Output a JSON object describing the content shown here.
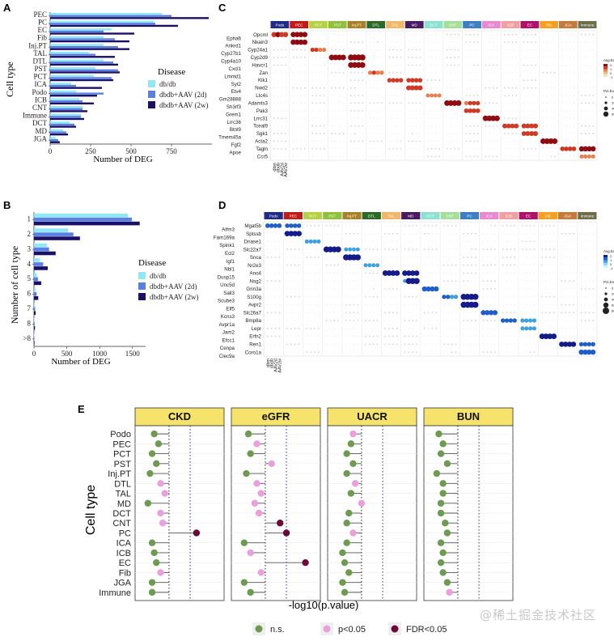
{
  "panels": {
    "A": "A",
    "B": "B",
    "C": "C",
    "D": "D",
    "E": "E"
  },
  "watermark": "@稀土掘金技术社区",
  "legend_title": "Disease",
  "chart_data": [
    {
      "id": "A",
      "type": "bar",
      "orientation": "horizontal",
      "xlabel": "Number of DEG",
      "ylabel": "Cell type",
      "xlim": [
        0,
        1000
      ],
      "xticks": [
        "0",
        "250",
        "500",
        "750"
      ],
      "categories": [
        "PEC",
        "PC",
        "EC",
        "Fib",
        "Inj.PT",
        "TAL",
        "DTL",
        "PST",
        "PCT",
        "ICA",
        "Podo",
        "ICB",
        "CNT",
        "Immune",
        "DCT",
        "MD",
        "JGA"
      ],
      "series": [
        {
          "name": "db/db",
          "color": "#8ee8f5",
          "values": [
            690,
            640,
            380,
            330,
            330,
            240,
            330,
            280,
            270,
            130,
            160,
            180,
            200,
            190,
            120,
            80,
            35
          ]
        },
        {
          "name": "dbdb+AAV (2d)",
          "color": "#5a7fe3",
          "values": [
            750,
            650,
            330,
            400,
            420,
            280,
            390,
            420,
            380,
            160,
            330,
            200,
            200,
            190,
            150,
            100,
            50
          ]
        },
        {
          "name": "dbdb+AAV (2w)",
          "color": "#1a1066",
          "values": [
            980,
            790,
            520,
            490,
            490,
            400,
            420,
            430,
            390,
            320,
            290,
            270,
            230,
            210,
            160,
            110,
            60
          ]
        }
      ]
    },
    {
      "id": "B",
      "type": "bar",
      "orientation": "horizontal",
      "xlabel": "Number of DEG",
      "ylabel": "Number of cell type",
      "xlim": [
        0,
        1700
      ],
      "xticks": [
        "0",
        "500",
        "1000",
        "1500"
      ],
      "categories": [
        "1",
        "2",
        "3",
        "4",
        "5",
        "6",
        "7",
        "8",
        ">8"
      ],
      "series": [
        {
          "name": "db/db",
          "color": "#8ee8f5",
          "values": [
            1430,
            520,
            200,
            90,
            45,
            25,
            10,
            6,
            4
          ]
        },
        {
          "name": "dbdb+AAV (2d)",
          "color": "#5a7fe3",
          "values": [
            1490,
            600,
            230,
            140,
            60,
            40,
            18,
            10,
            6
          ]
        },
        {
          "name": "dbdb+AAV (2w)",
          "color": "#1a1066",
          "values": [
            1610,
            700,
            330,
            210,
            110,
            65,
            25,
            15,
            8
          ]
        }
      ]
    },
    {
      "id": "C",
      "type": "dotplot",
      "clusters": [
        {
          "name": "Podo",
          "color": "#1f2d87"
        },
        {
          "name": "PEC",
          "color": "#c21a1a"
        },
        {
          "name": "PCT",
          "color": "#b4d244"
        },
        {
          "name": "PST",
          "color": "#8fc13b"
        },
        {
          "name": "Inj.PT",
          "color": "#a8822a"
        },
        {
          "name": "DTL",
          "color": "#2d6a2a"
        },
        {
          "name": "TAL",
          "color": "#f0b86a"
        },
        {
          "name": "MD",
          "color": "#4a1a63"
        },
        {
          "name": "DCT",
          "color": "#8ee0d0"
        },
        {
          "name": "CNT",
          "color": "#a6df9a"
        },
        {
          "name": "PC",
          "color": "#3c7fc2"
        },
        {
          "name": "ICA",
          "color": "#e98ad0"
        },
        {
          "name": "ICB",
          "color": "#f0a0a0"
        },
        {
          "name": "EC",
          "color": "#b0126a"
        },
        {
          "name": "Fib",
          "color": "#f5a020"
        },
        {
          "name": "JGA",
          "color": "#c47a3a"
        },
        {
          "name": "Immune",
          "color": "#6e6e4a"
        }
      ],
      "genes_left": [
        "Epha6",
        "Ankrd1",
        "Cyp27b1",
        "Cyp4a10",
        "Cxcl1",
        "Lmntd1",
        "Syt2",
        "Etv4",
        "Gm28888",
        "Sh3rf3",
        "Grem1",
        "Lrrc36",
        "Btnl9",
        "Tmem45a",
        "Fgf2",
        "Apoe"
      ],
      "genes_right": [
        "Opcml",
        "Nkain3",
        "Cyp24a1",
        "Cyp2d9",
        "Havcr1",
        "Zan",
        "Klk1",
        "Nwd2",
        "Ltc4s",
        "Adamts3",
        "Pak3",
        "Lrrc31",
        "Tceal9",
        "Sgk1",
        "Acta2",
        "Tagln",
        "Ccr5"
      ],
      "conditions": [
        "dbm",
        "dbdb",
        "AAV2d",
        "AAV2w"
      ],
      "legend": {
        "scale_title": "Avg.Exp",
        "size_title": "Pct.Exp",
        "scale_values": [
          "2",
          "1",
          "0",
          "-1"
        ],
        "size_values": [
          "0",
          "20",
          "40",
          "60"
        ]
      }
    },
    {
      "id": "D",
      "type": "dotplot",
      "clusters": [
        {
          "name": "Podo",
          "color": "#1f2d87"
        },
        {
          "name": "PEC",
          "color": "#c21a1a"
        },
        {
          "name": "PCT",
          "color": "#b4d244"
        },
        {
          "name": "PST",
          "color": "#8fc13b"
        },
        {
          "name": "Inj.PT",
          "color": "#a8822a"
        },
        {
          "name": "DTL",
          "color": "#2d6a2a"
        },
        {
          "name": "TAL",
          "color": "#f0b86a"
        },
        {
          "name": "MD",
          "color": "#4a1a63"
        },
        {
          "name": "DCT",
          "color": "#8ee0d0"
        },
        {
          "name": "CNT",
          "color": "#a6df9a"
        },
        {
          "name": "PC",
          "color": "#3c7fc2"
        },
        {
          "name": "ICA",
          "color": "#e98ad0"
        },
        {
          "name": "ICB",
          "color": "#f0a0a0"
        },
        {
          "name": "EC",
          "color": "#b0126a"
        },
        {
          "name": "Fib",
          "color": "#f5a020"
        },
        {
          "name": "JGA",
          "color": "#c47a3a"
        },
        {
          "name": "Immune",
          "color": "#6e6e4a"
        }
      ],
      "genes_left": [
        "Aifm3",
        "Fam169a",
        "Spink1",
        "Ecl2",
        "Igf1",
        "Nbl1",
        "Dusp15",
        "Unc5d",
        "Sall3",
        "Scube3",
        "Elf5",
        "Kcns3",
        "Avpr1a",
        "Jam2",
        "Efcc1",
        "Cenpa",
        "Clec9a"
      ],
      "genes_right": [
        "Mgat5b",
        "Sptssb",
        "Dnase1",
        "Slc22a7",
        "Snca",
        "Nr2e3",
        "Ano4",
        "Nsg2",
        "Grin3a",
        "S100g",
        "Avpr2",
        "Slc26a7",
        "Bmp8a",
        "Lepr",
        "Erfn2",
        "Ren1",
        "Coro1a"
      ],
      "conditions": [
        "dbm",
        "dbdb",
        "AAV2d",
        "AAV2w"
      ],
      "legend": {
        "scale_title": "Avg.Exp",
        "size_title": "Pct.Exp",
        "scale_values": [
          "2",
          "1",
          "0",
          "-1"
        ],
        "size_values": [
          "0",
          "20",
          "40",
          "60",
          "80"
        ]
      }
    },
    {
      "id": "E",
      "type": "lollipop",
      "xlabel": "-log10(p.value)",
      "ylabel": "Cell type",
      "categories": [
        "Podo",
        "PEC",
        "PCT",
        "PST",
        "Inj.PT",
        "DTL",
        "TAL",
        "MD",
        "DCT",
        "CNT",
        "PC",
        "ICA",
        "ICB",
        "EC",
        "Fib",
        "JGA",
        "Immune"
      ],
      "status_colors": {
        "ns": "#6e9a52",
        "p": "#e9a0dc",
        "fdr": "#6b0a3a"
      },
      "legend": [
        {
          "key": "ns",
          "label": "n.s."
        },
        {
          "key": "p",
          "label": "p<0.05"
        },
        {
          "key": "fdr",
          "label": "FDR<0.05"
        }
      ],
      "facets": [
        {
          "name": "CKD",
          "values": [
            0.6,
            0.8,
            0.5,
            0.7,
            0.4,
            0.9,
            1.1,
            0.3,
            0.9,
            1.0,
            2.6,
            0.5,
            0.6,
            0.7,
            0.9,
            0.5,
            0.5
          ],
          "status": [
            "ns",
            "ns",
            "ns",
            "ns",
            "ns",
            "p",
            "p",
            "ns",
            "p",
            "p",
            "fdr",
            "ns",
            "ns",
            "ns",
            "p",
            "ns",
            "ns"
          ]
        },
        {
          "name": "eGFR",
          "values": [
            0.5,
            0.9,
            0.6,
            1.6,
            0.4,
            0.9,
            1.1,
            0.8,
            1.0,
            2.0,
            2.3,
            0.3,
            0.6,
            3.2,
            1.1,
            0.3,
            0.6
          ],
          "status": [
            "ns",
            "p",
            "ns",
            "p",
            "ns",
            "p",
            "p",
            "p",
            "p",
            "fdr",
            "fdr",
            "ns",
            "p",
            "fdr",
            "p",
            "ns",
            "ns"
          ]
        },
        {
          "name": "UACR",
          "values": [
            0.9,
            0.8,
            0.6,
            0.9,
            0.6,
            1.0,
            0.8,
            1.3,
            0.7,
            0.6,
            0.9,
            0.6,
            0.4,
            0.5,
            0.7,
            0.4,
            0.5
          ],
          "status": [
            "p",
            "ns",
            "ns",
            "ns",
            "ns",
            "p",
            "ns",
            "p",
            "ns",
            "ns",
            "p",
            "ns",
            "ns",
            "ns",
            "ns",
            "ns",
            "ns"
          ]
        },
        {
          "name": "BUN",
          "values": [
            0.4,
            0.6,
            0.5,
            0.8,
            0.3,
            0.6,
            0.6,
            0.5,
            0.5,
            0.7,
            0.8,
            0.5,
            0.6,
            0.5,
            0.6,
            0.8,
            0.9
          ],
          "status": [
            "ns",
            "ns",
            "ns",
            "ns",
            "ns",
            "ns",
            "ns",
            "ns",
            "ns",
            "ns",
            "ns",
            "ns",
            "ns",
            "ns",
            "ns",
            "ns",
            "p"
          ]
        }
      ]
    }
  ]
}
